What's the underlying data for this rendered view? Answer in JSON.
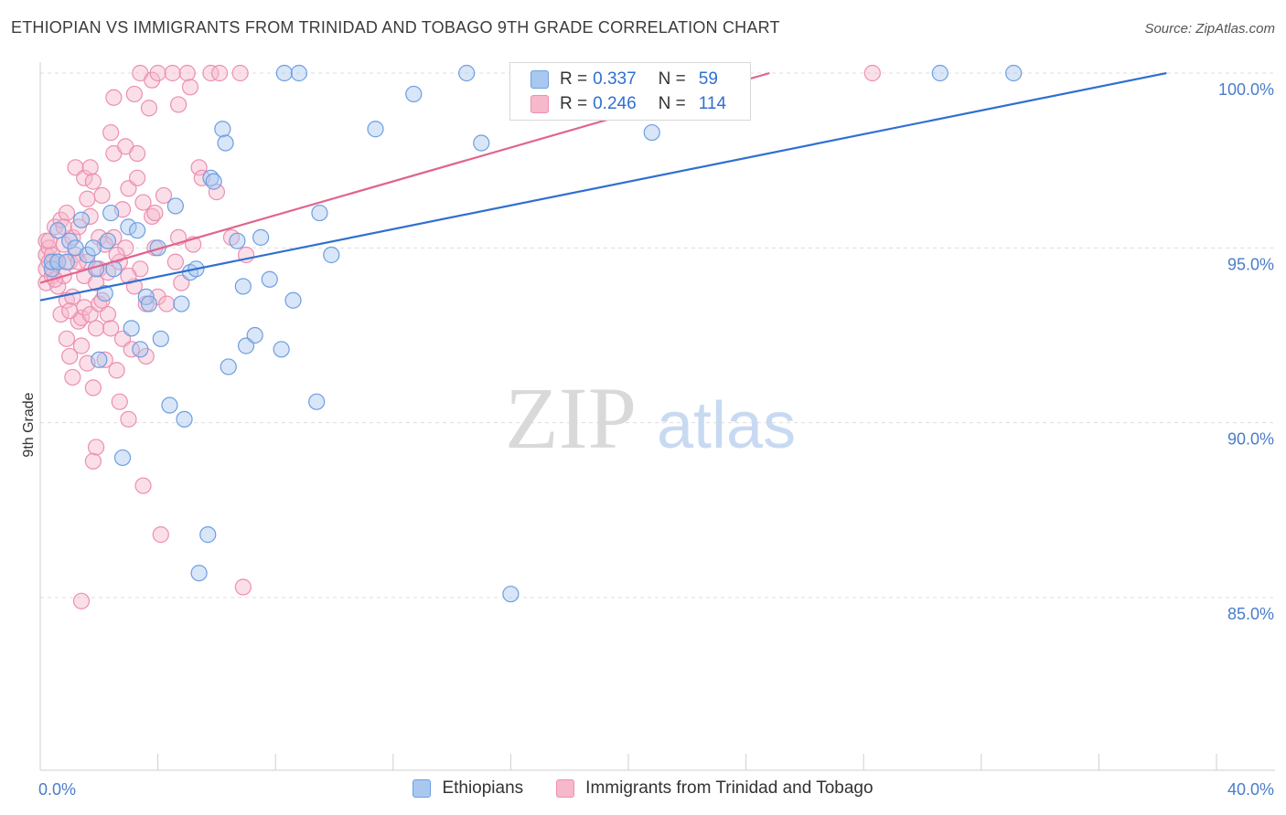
{
  "header": {
    "title": "ETHIOPIAN VS IMMIGRANTS FROM TRINIDAD AND TOBAGO 9TH GRADE CORRELATION CHART",
    "source": "Source: ZipAtlas.com"
  },
  "watermark": {
    "zip": "ZIP",
    "atlas": "atlas"
  },
  "legend": {
    "rows": [
      {
        "r_label": "R =",
        "r_value": "0.337",
        "n_label": "N =",
        "n_value": "59"
      },
      {
        "r_label": "R =",
        "r_value": "0.246",
        "n_label": "N =",
        "n_value": "114"
      }
    ]
  },
  "bottom_legend": {
    "series_a": "Ethiopians",
    "series_b": "Immigrants from Trinidad and Tobago"
  },
  "colors": {
    "blue_fill": "#a9c8f0",
    "blue_stroke": "#6d9ee0",
    "blue_line": "#2f6fd0",
    "pink_fill": "#f7b8cc",
    "pink_stroke": "#ec8fb0",
    "pink_line": "#e0648e",
    "tick_text": "#4a7cc9",
    "grid": "#dddddd"
  },
  "chart_data": {
    "type": "scatter",
    "title": "ETHIOPIAN VS IMMIGRANTS FROM TRINIDAD AND TOBAGO 9TH GRADE CORRELATION CHART",
    "xlabel": "",
    "ylabel": "9th Grade",
    "xlim": [
      0,
      40
    ],
    "ylim": [
      80.5,
      100.5
    ],
    "x_tick_labels": [
      {
        "value": 0,
        "label": "0.0%"
      },
      {
        "value": 40,
        "label": "40.0%"
      }
    ],
    "y_tick_labels": [
      {
        "value": 85,
        "label": "85.0%"
      },
      {
        "value": 90,
        "label": "90.0%"
      },
      {
        "value": 95,
        "label": "95.0%"
      },
      {
        "value": 100,
        "label": "100.0%"
      }
    ],
    "series": [
      {
        "name": "Ethiopians",
        "r": 0.337,
        "n": 59,
        "trend": {
          "x": [
            0,
            38.3
          ],
          "y": [
            93.5,
            100
          ]
        },
        "points": [
          [
            0.4,
            94.4
          ],
          [
            0.4,
            94.6
          ],
          [
            0.6,
            94.6
          ],
          [
            0.6,
            95.5
          ],
          [
            1.0,
            95.2
          ],
          [
            1.2,
            95.0
          ],
          [
            1.4,
            95.8
          ],
          [
            1.6,
            94.8
          ],
          [
            1.8,
            95.0
          ],
          [
            1.9,
            94.4
          ],
          [
            2.0,
            91.8
          ],
          [
            2.3,
            95.2
          ],
          [
            2.4,
            96.0
          ],
          [
            2.5,
            94.4
          ],
          [
            2.8,
            89.0
          ],
          [
            3.0,
            95.6
          ],
          [
            3.1,
            92.7
          ],
          [
            3.3,
            95.5
          ],
          [
            3.4,
            92.1
          ],
          [
            3.6,
            93.6
          ],
          [
            3.7,
            93.4
          ],
          [
            4.0,
            95.0
          ],
          [
            4.1,
            92.4
          ],
          [
            4.4,
            90.5
          ],
          [
            4.6,
            96.2
          ],
          [
            4.8,
            93.4
          ],
          [
            4.9,
            90.1
          ],
          [
            5.1,
            94.3
          ],
          [
            5.3,
            94.4
          ],
          [
            5.4,
            85.7
          ],
          [
            5.7,
            86.8
          ],
          [
            5.8,
            97.0
          ],
          [
            5.9,
            96.9
          ],
          [
            6.2,
            98.4
          ],
          [
            6.3,
            98.0
          ],
          [
            6.4,
            91.6
          ],
          [
            6.7,
            95.2
          ],
          [
            6.9,
            93.9
          ],
          [
            7.0,
            92.2
          ],
          [
            7.3,
            92.5
          ],
          [
            7.5,
            95.3
          ],
          [
            7.8,
            94.1
          ],
          [
            8.2,
            92.1
          ],
          [
            8.3,
            100.0
          ],
          [
            8.8,
            100.0
          ],
          [
            8.6,
            93.5
          ],
          [
            9.4,
            90.6
          ],
          [
            9.5,
            96.0
          ],
          [
            9.9,
            94.8
          ],
          [
            11.4,
            98.4
          ],
          [
            12.7,
            99.4
          ],
          [
            14.5,
            100.0
          ],
          [
            15.0,
            98.0
          ],
          [
            16.0,
            85.1
          ],
          [
            20.8,
            98.3
          ],
          [
            30.6,
            100.0
          ],
          [
            33.1,
            100.0
          ],
          [
            0.9,
            94.6
          ],
          [
            2.2,
            93.7
          ]
        ]
      },
      {
        "name": "Immigrants from Trinidad and Tobago",
        "r": 0.246,
        "n": 114,
        "trend": {
          "x": [
            0,
            24.8
          ],
          "y": [
            94.0,
            100
          ]
        },
        "points": [
          [
            0.2,
            94.0
          ],
          [
            0.2,
            94.8
          ],
          [
            0.2,
            95.2
          ],
          [
            0.2,
            94.4
          ],
          [
            0.3,
            94.6
          ],
          [
            0.3,
            95.0
          ],
          [
            0.4,
            94.2
          ],
          [
            0.4,
            94.8
          ],
          [
            0.5,
            95.6
          ],
          [
            0.6,
            94.6
          ],
          [
            0.6,
            93.9
          ],
          [
            0.7,
            95.8
          ],
          [
            0.7,
            93.1
          ],
          [
            0.8,
            94.2
          ],
          [
            0.8,
            95.1
          ],
          [
            0.9,
            93.5
          ],
          [
            0.9,
            92.4
          ],
          [
            0.9,
            96.0
          ],
          [
            1.0,
            94.6
          ],
          [
            1.0,
            91.9
          ],
          [
            1.1,
            95.3
          ],
          [
            1.1,
            91.3
          ],
          [
            1.1,
            93.6
          ],
          [
            1.2,
            97.3
          ],
          [
            1.2,
            94.8
          ],
          [
            1.3,
            92.9
          ],
          [
            1.3,
            95.6
          ],
          [
            1.4,
            93.0
          ],
          [
            1.4,
            92.2
          ],
          [
            1.5,
            93.3
          ],
          [
            1.5,
            94.2
          ],
          [
            1.5,
            97.0
          ],
          [
            1.6,
            96.4
          ],
          [
            1.6,
            94.6
          ],
          [
            1.6,
            91.7
          ],
          [
            1.7,
            93.1
          ],
          [
            1.7,
            95.9
          ],
          [
            1.7,
            97.3
          ],
          [
            1.8,
            96.9
          ],
          [
            1.8,
            91.0
          ],
          [
            1.8,
            88.9
          ],
          [
            1.9,
            94.0
          ],
          [
            1.9,
            92.7
          ],
          [
            1.9,
            89.3
          ],
          [
            2.0,
            95.3
          ],
          [
            2.0,
            93.4
          ],
          [
            2.0,
            94.4
          ],
          [
            2.1,
            96.5
          ],
          [
            2.1,
            93.5
          ],
          [
            2.2,
            91.8
          ],
          [
            2.3,
            94.3
          ],
          [
            2.3,
            93.1
          ],
          [
            2.4,
            92.7
          ],
          [
            2.4,
            98.3
          ],
          [
            2.5,
            99.3
          ],
          [
            2.5,
            97.7
          ],
          [
            2.5,
            95.3
          ],
          [
            2.6,
            91.5
          ],
          [
            2.7,
            94.6
          ],
          [
            2.7,
            90.6
          ],
          [
            2.8,
            92.4
          ],
          [
            2.8,
            96.1
          ],
          [
            2.9,
            95.0
          ],
          [
            2.9,
            97.9
          ],
          [
            3.0,
            90.1
          ],
          [
            3.0,
            96.7
          ],
          [
            3.1,
            92.1
          ],
          [
            3.2,
            99.4
          ],
          [
            3.2,
            93.9
          ],
          [
            3.3,
            97.7
          ],
          [
            3.3,
            97.0
          ],
          [
            3.4,
            94.4
          ],
          [
            3.4,
            100.0
          ],
          [
            3.5,
            88.2
          ],
          [
            3.5,
            96.3
          ],
          [
            3.6,
            91.9
          ],
          [
            3.6,
            93.4
          ],
          [
            3.7,
            99.0
          ],
          [
            3.8,
            95.9
          ],
          [
            3.8,
            99.8
          ],
          [
            3.9,
            95.0
          ],
          [
            4.0,
            100.0
          ],
          [
            4.0,
            93.6
          ],
          [
            4.1,
            86.8
          ],
          [
            4.2,
            96.5
          ],
          [
            4.3,
            93.4
          ],
          [
            4.5,
            100.0
          ],
          [
            4.6,
            94.6
          ],
          [
            4.7,
            99.1
          ],
          [
            4.7,
            95.3
          ],
          [
            4.8,
            94.0
          ],
          [
            5.0,
            100.0
          ],
          [
            5.1,
            99.6
          ],
          [
            5.2,
            95.1
          ],
          [
            5.4,
            97.3
          ],
          [
            5.5,
            97.0
          ],
          [
            5.8,
            100.0
          ],
          [
            6.0,
            96.6
          ],
          [
            6.1,
            100.0
          ],
          [
            6.5,
            95.3
          ],
          [
            6.8,
            100.0
          ],
          [
            6.9,
            85.3
          ],
          [
            7.0,
            94.8
          ],
          [
            1.4,
            84.9
          ],
          [
            28.3,
            100.0
          ],
          [
            1.0,
            93.2
          ],
          [
            2.2,
            95.1
          ],
          [
            0.5,
            94.1
          ],
          [
            0.8,
            95.6
          ],
          [
            1.3,
            94.6
          ],
          [
            2.6,
            94.8
          ],
          [
            3.0,
            94.2
          ],
          [
            3.9,
            96.0
          ],
          [
            0.3,
            95.2
          ]
        ]
      }
    ]
  }
}
